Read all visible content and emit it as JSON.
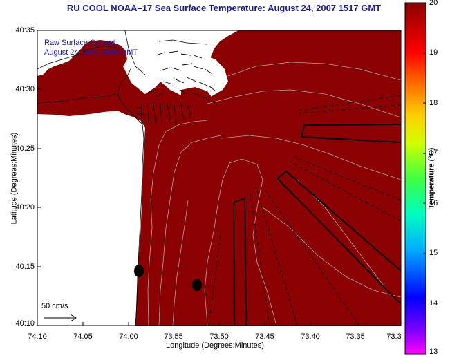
{
  "title": "RU COOL  NOAA–17  Sea Surface Temperature:  August 24, 2007 1517 GMT",
  "legend": {
    "line1": "Raw Surface Current:",
    "line2": "August 24, 2007 1500 GMT"
  },
  "scale_label": "50 cm/s",
  "axes": {
    "xlabel": "Longitude (Degrees:Minutes)",
    "ylabel": "Latitude (Degrees:Minutes)",
    "xticks": [
      "74:10",
      "74:05",
      "74:00",
      "73:55",
      "73:50",
      "73:45",
      "73:40",
      "73:35",
      "73:3"
    ],
    "yticks": [
      "40:35",
      "40:30",
      "40:25",
      "40:20",
      "40:15",
      "40:10"
    ]
  },
  "colorbar": {
    "label": "Temperature (°C)",
    "ticks": [
      "20",
      "19",
      "18",
      "17",
      "16",
      "15",
      "14",
      "13"
    ],
    "range": [
      13,
      20
    ],
    "sst_color": "#8b0000"
  },
  "colors": {
    "title": "#1a1aa8",
    "water_sst": "#8b0000",
    "land": "#ffffff"
  }
}
